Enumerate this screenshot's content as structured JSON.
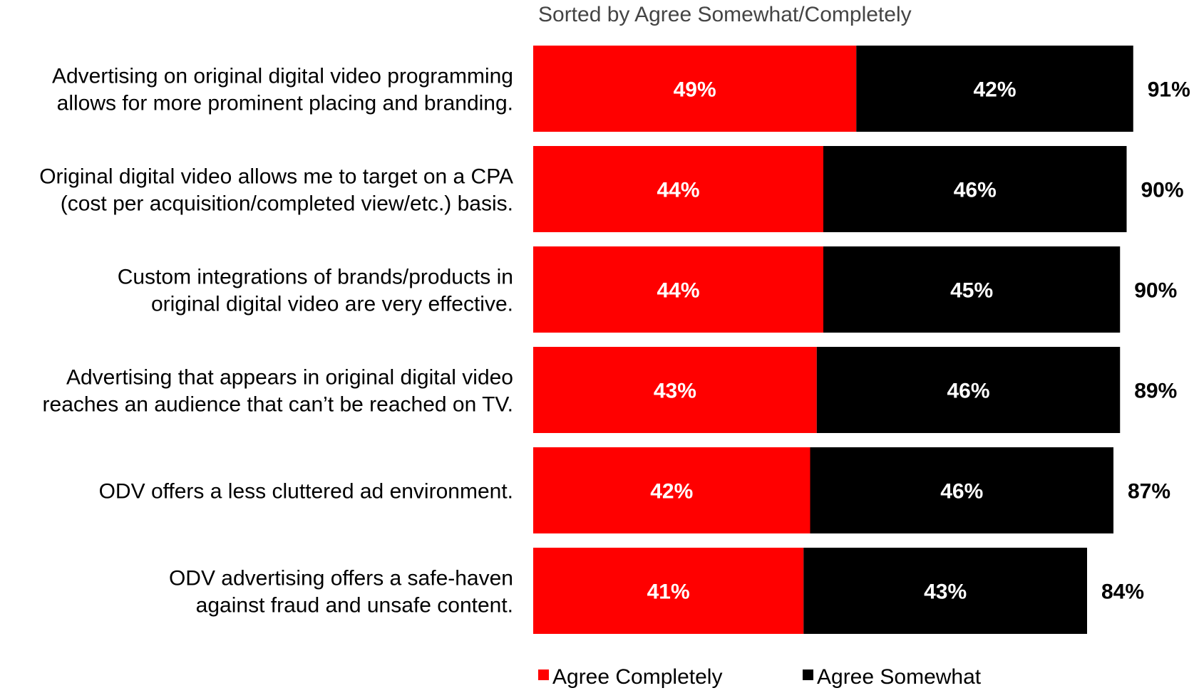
{
  "chart_data": {
    "type": "bar",
    "orientation": "horizontal",
    "stacked": true,
    "subtitle": "Sorted by Agree Somewhat/Completely",
    "categories": [
      [
        "Advertising on original digital video programming",
        "allows for more prominent placing and branding."
      ],
      [
        "Original digital video allows me to target on a CPA",
        "(cost per acquisition/completed view/etc.) basis."
      ],
      [
        "Custom integrations of brands/products in",
        "original digital video are very effective."
      ],
      [
        "Advertising that appears in original digital video",
        "reaches an audience that can’t be reached on TV."
      ],
      [
        "ODV offers a less cluttered ad environment."
      ],
      [
        "ODV advertising offers a safe-haven",
        "against fraud and unsafe content."
      ]
    ],
    "series": [
      {
        "name": "Agree Completely",
        "color": "#ff0000",
        "values": [
          49,
          44,
          44,
          43,
          42,
          41
        ],
        "labels": [
          "49%",
          "44%",
          "44%",
          "43%",
          "42%",
          "41%"
        ]
      },
      {
        "name": "Agree Somewhat",
        "color": "#000000",
        "values": [
          42,
          46,
          45,
          46,
          46,
          43
        ],
        "labels": [
          "42%",
          "46%",
          "45%",
          "46%",
          "46%",
          "43%"
        ]
      }
    ],
    "totals": [
      91,
      90,
      90,
      89,
      87,
      84
    ],
    "total_labels": [
      "91%",
      "90%",
      "90%",
      "89%",
      "87%",
      "84%"
    ],
    "xlim": [
      0,
      100
    ],
    "grid": false,
    "legend_position": "bottom"
  }
}
